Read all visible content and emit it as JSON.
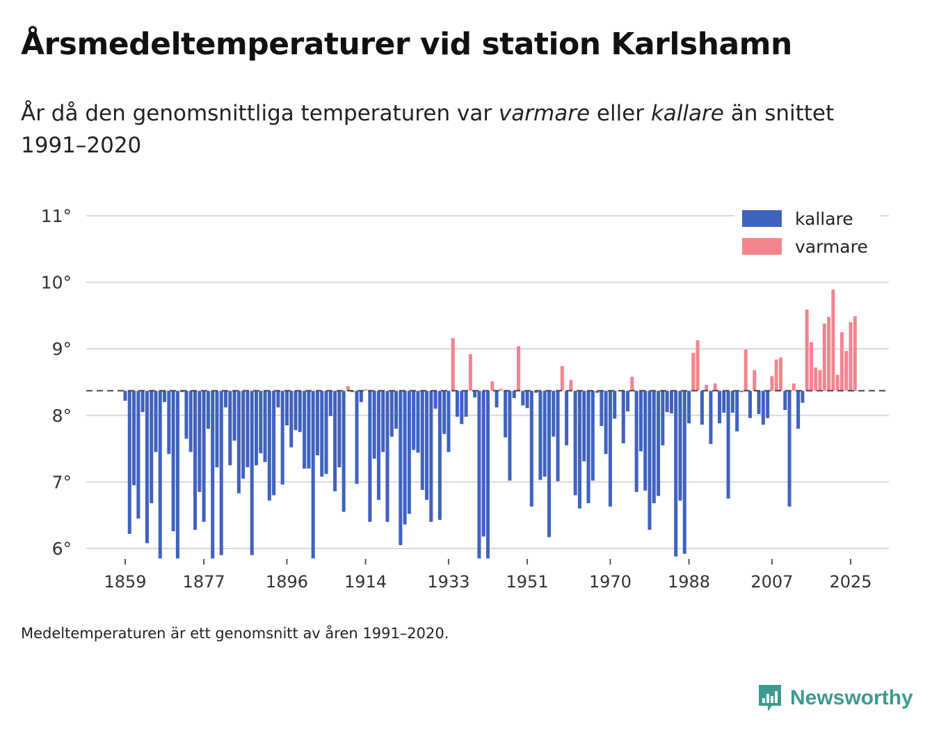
{
  "header": {
    "title": "Årsmedeltemperaturer vid station Karlshamn",
    "subtitle_part1": "År då den genomsnittliga temperaturen var ",
    "subtitle_em1": "varmare",
    "subtitle_part2": " eller ",
    "subtitle_em2": "kallare",
    "subtitle_part3": " än snittet 1991–2020"
  },
  "footer": {
    "note": "Medeltemperaturen är ett genomsnitt av åren 1991–2020.",
    "brand": "Newsworthy"
  },
  "colors": {
    "colder": "#4062bf",
    "warmer": "#f5848f",
    "brand": "#3c9a8f",
    "gridline": "#d9d9d9",
    "reference_line": "#444444"
  },
  "chart_data": {
    "type": "bar",
    "title": "Årsmedeltemperaturer vid station Karlshamn",
    "xlabel": "",
    "ylabel": "",
    "ylim": [
      5.85,
      11.2
    ],
    "baseline": 8.37,
    "baseline_note": "Medeltemperaturen är ett genomsnitt av åren 1991–2020.",
    "y_ticks": [
      6,
      7,
      8,
      9,
      10,
      11
    ],
    "y_tick_labels": [
      "6°",
      "7°",
      "8°",
      "9°",
      "10°",
      "11°"
    ],
    "x_ticks": [
      1859,
      1877,
      1896,
      1914,
      1933,
      1951,
      1970,
      1988,
      2007,
      2025
    ],
    "x_tick_labels": [
      "1859",
      "1877",
      "1896",
      "1914",
      "1933",
      "1951",
      "1970",
      "1988",
      "2007",
      "2025"
    ],
    "legend": [
      {
        "label": "kallare",
        "color": "#4062bf"
      },
      {
        "label": "varmare",
        "color": "#f5848f"
      }
    ],
    "legend_position": "top-right",
    "start_year": 1859,
    "values": [
      8.22,
      6.22,
      6.95,
      6.45,
      8.05,
      6.08,
      6.68,
      7.45,
      5.85,
      8.2,
      7.42,
      6.26,
      5.85,
      8.35,
      7.65,
      7.45,
      6.28,
      6.85,
      6.4,
      7.8,
      5.85,
      7.22,
      5.9,
      8.12,
      7.25,
      7.62,
      6.83,
      7.05,
      7.22,
      5.9,
      7.25,
      7.43,
      7.3,
      6.72,
      6.8,
      8.12,
      6.96,
      7.85,
      7.52,
      7.78,
      7.75,
      7.2,
      7.2,
      5.85,
      7.4,
      7.08,
      7.12,
      7.99,
      6.86,
      7.22,
      6.55,
      8.44,
      8.35,
      6.97,
      8.2,
      8.39,
      6.4,
      7.35,
      6.73,
      7.45,
      6.4,
      7.68,
      7.8,
      6.05,
      6.36,
      6.52,
      7.48,
      7.44,
      6.88,
      6.73,
      6.4,
      8.1,
      6.43,
      7.72,
      7.45,
      9.16,
      7.98,
      7.87,
      7.98,
      8.92,
      8.27,
      5.85,
      6.18,
      5.85,
      8.51,
      8.12,
      8.4,
      7.67,
      7.02,
      8.26,
      9.04,
      8.15,
      8.11,
      6.63,
      8.34,
      7.03,
      7.08,
      6.17,
      7.68,
      7.01,
      8.74,
      7.55,
      8.53,
      6.8,
      6.6,
      7.31,
      6.68,
      7.02,
      8.34,
      7.84,
      7.42,
      6.63,
      7.95,
      8.37,
      7.58,
      8.06,
      8.58,
      6.85,
      7.46,
      6.87,
      6.28,
      6.68,
      6.79,
      7.55,
      8.05,
      8.03,
      5.88,
      6.72,
      5.92,
      7.88,
      8.94,
      9.13,
      7.86,
      8.46,
      7.57,
      8.48,
      7.88,
      8.04,
      6.75,
      8.04,
      7.76,
      8.35,
      8.99,
      7.96,
      8.68,
      8.02,
      7.86,
      7.96,
      8.59,
      8.84,
      8.87,
      8.08,
      6.63,
      8.48,
      7.8,
      8.19,
      9.59,
      9.1,
      8.72,
      8.68,
      9.38,
      9.48,
      9.89,
      8.61,
      9.25,
      8.97,
      9.4,
      9.49
    ]
  }
}
